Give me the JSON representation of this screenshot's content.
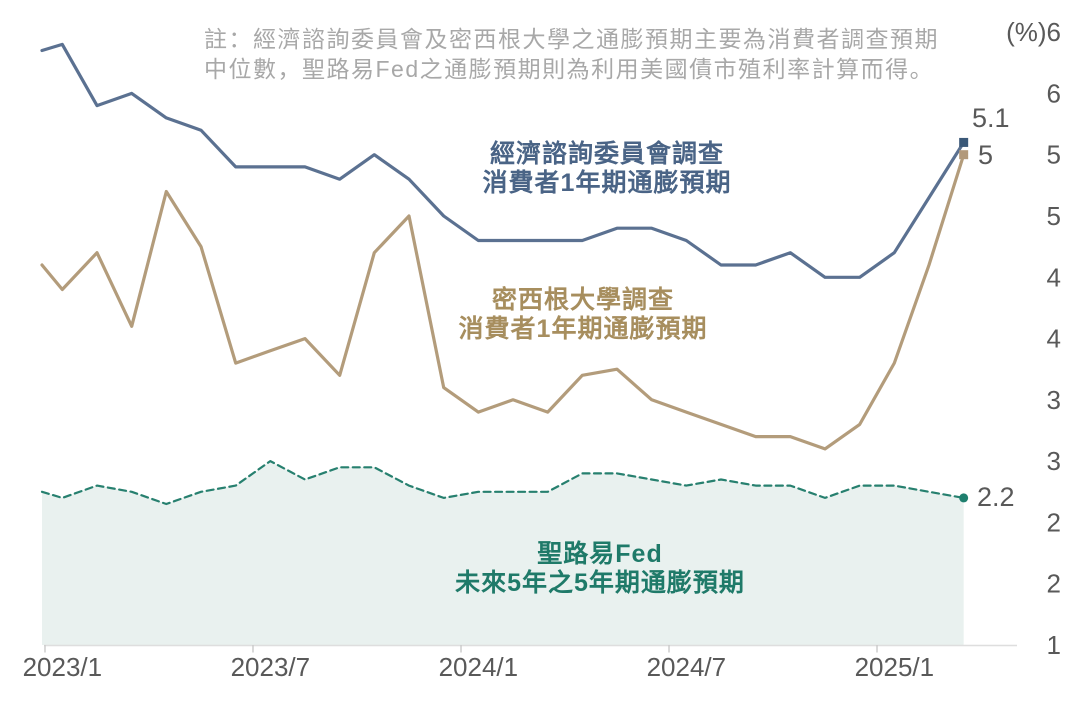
{
  "note": {
    "line1": "註：經濟諮詢委員會及密西根大學之通膨預期主要為消費者調查預期",
    "line2": "中位數，聖路易Fed之通膨預期則為利用美國債市殖利率計算而得。"
  },
  "chart_data": {
    "type": "line",
    "unit_label": "(%)",
    "x": [
      "2023/1",
      "2023/2",
      "2023/3",
      "2023/4",
      "2023/5",
      "2023/6",
      "2023/7",
      "2023/8",
      "2023/9",
      "2023/10",
      "2023/11",
      "2023/12",
      "2024/1",
      "2024/2",
      "2024/3",
      "2024/4",
      "2024/5",
      "2024/6",
      "2024/7",
      "2024/8",
      "2024/9",
      "2024/10",
      "2024/11",
      "2024/12",
      "2025/1",
      "2025/2",
      "2025/3"
    ],
    "x_tick_labels": [
      "2023/1",
      "2023/7",
      "2024/1",
      "2024/7",
      "2025/1"
    ],
    "x_tick_indices": [
      0,
      6,
      12,
      18,
      24
    ],
    "ylim": [
      1,
      6
    ],
    "grid": false,
    "y_ticks": [
      {
        "value": 6.0,
        "label": "(%)6"
      },
      {
        "value": 5.5,
        "label": "6"
      },
      {
        "value": 5.0,
        "label": "5"
      },
      {
        "value": 4.5,
        "label": "5"
      },
      {
        "value": 4.0,
        "label": "4"
      },
      {
        "value": 3.5,
        "label": "4"
      },
      {
        "value": 3.0,
        "label": "3"
      },
      {
        "value": 2.5,
        "label": "3"
      },
      {
        "value": 2.0,
        "label": "2"
      },
      {
        "value": 1.5,
        "label": "2"
      },
      {
        "value": 1.0,
        "label": "1"
      }
    ],
    "axis_color": "#dedede",
    "tick_color": "#c9c9c9",
    "tick_label_color": "#595959",
    "series": [
      {
        "name": "conference-board-survey",
        "label_line1": "經濟諮詢委員會調查",
        "label_line2": "消費者1年期通膨預期",
        "color": "#5b7191",
        "marker": "square",
        "marker_color": "#3a5878",
        "text_color": "#4a6486",
        "dashed": false,
        "end_label": "5.1",
        "lead_in": 5.85,
        "values": [
          5.9,
          5.4,
          5.5,
          5.3,
          5.2,
          4.9,
          4.9,
          4.9,
          4.8,
          5.0,
          4.8,
          4.5,
          4.3,
          4.3,
          4.3,
          4.3,
          4.4,
          4.4,
          4.3,
          4.1,
          4.1,
          4.2,
          4.0,
          4.0,
          4.2,
          4.65,
          5.1
        ]
      },
      {
        "name": "michigan-survey",
        "label_line1": "密西根大學調查",
        "label_line2": "消費者1年期通膨預期",
        "color": "#b39c7b",
        "marker": "square",
        "marker_color": "#b2997a",
        "text_color": "#a78e5e",
        "dashed": false,
        "end_label": "5",
        "lead_in": 4.1,
        "values": [
          3.9,
          4.2,
          3.6,
          4.7,
          4.25,
          3.3,
          3.4,
          3.5,
          3.2,
          4.2,
          4.5,
          3.1,
          2.9,
          3.0,
          2.9,
          3.2,
          3.25,
          3.0,
          2.9,
          2.8,
          2.7,
          2.7,
          2.6,
          2.8,
          3.3,
          4.1,
          5.0
        ]
      },
      {
        "name": "stlouis-fed-5y5y-forward",
        "label_line1": "聖路易Fed",
        "label_line2": "未來5年之5年期通膨預期",
        "color": "#27806f",
        "fill": "#e9f1ef",
        "marker": "circle",
        "marker_color": "#1e7f6e",
        "text_color": "#1f7a69",
        "dashed": true,
        "end_label": "2.2",
        "lead_in": 2.25,
        "values": [
          2.2,
          2.3,
          2.25,
          2.15,
          2.25,
          2.3,
          2.5,
          2.35,
          2.45,
          2.45,
          2.3,
          2.2,
          2.25,
          2.25,
          2.25,
          2.4,
          2.4,
          2.35,
          2.3,
          2.35,
          2.3,
          2.3,
          2.2,
          2.3,
          2.3,
          2.25,
          2.2
        ]
      }
    ]
  }
}
